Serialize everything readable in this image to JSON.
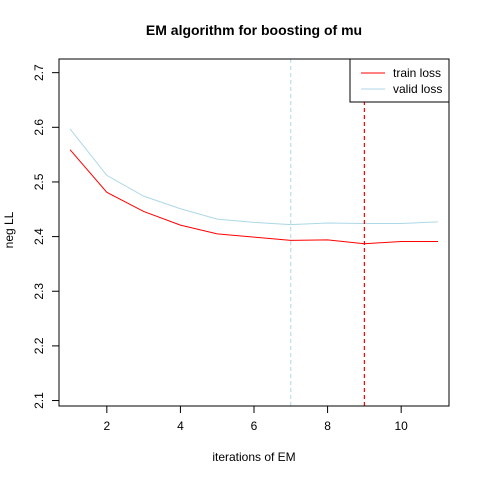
{
  "chart_data": {
    "type": "line",
    "title": "EM algorithm for boosting of mu",
    "xlabel": "iterations of EM",
    "ylabel": "neg LL",
    "xlim": [
      0.7,
      11.3
    ],
    "ylim": [
      2.09,
      2.725
    ],
    "xticks": [
      2,
      4,
      6,
      8,
      10
    ],
    "yticks": [
      2.1,
      2.2,
      2.3,
      2.4,
      2.5,
      2.6,
      2.7
    ],
    "x": [
      1,
      2,
      3,
      4,
      5,
      6,
      7,
      8,
      9,
      10,
      11
    ],
    "series": [
      {
        "name": "train loss",
        "color": "#ff0000",
        "values": [
          2.559,
          2.481,
          2.446,
          2.421,
          2.405,
          2.399,
          2.393,
          2.394,
          2.387,
          2.391,
          2.391
        ]
      },
      {
        "name": "valid loss",
        "color": "#add8e6",
        "values": [
          2.597,
          2.512,
          2.474,
          2.451,
          2.432,
          2.426,
          2.422,
          2.425,
          2.424,
          2.424,
          2.427
        ]
      }
    ],
    "vlines": [
      {
        "x": 7,
        "color": "#add8e6",
        "style": "dashed"
      },
      {
        "x": 9,
        "color": "#ff0000",
        "style": "dashed"
      }
    ],
    "legend": {
      "position": "top-right",
      "entries": [
        "train loss",
        "valid loss"
      ]
    },
    "grid": false
  }
}
